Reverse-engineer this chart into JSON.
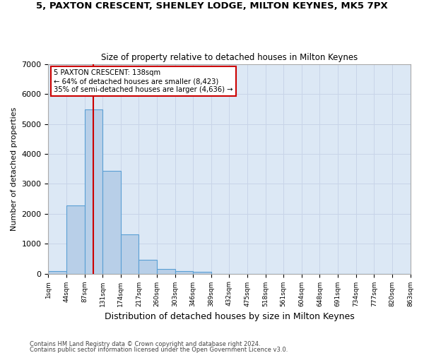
{
  "title1": "5, PAXTON CRESCENT, SHENLEY LODGE, MILTON KEYNES, MK5 7PX",
  "title2": "Size of property relative to detached houses in Milton Keynes",
  "xlabel": "Distribution of detached houses by size in Milton Keynes",
  "ylabel": "Number of detached properties",
  "footnote1": "Contains HM Land Registry data © Crown copyright and database right 2024.",
  "footnote2": "Contains public sector information licensed under the Open Government Licence v3.0.",
  "bar_values": [
    75,
    2280,
    5480,
    3430,
    1310,
    470,
    165,
    90,
    55,
    0,
    0,
    0,
    0,
    0,
    0,
    0,
    0,
    0,
    0,
    0
  ],
  "tick_labels": [
    "1sqm",
    "44sqm",
    "87sqm",
    "131sqm",
    "174sqm",
    "217sqm",
    "260sqm",
    "303sqm",
    "346sqm",
    "389sqm",
    "432sqm",
    "475sqm",
    "518sqm",
    "561sqm",
    "604sqm",
    "648sqm",
    "691sqm",
    "734sqm",
    "777sqm",
    "820sqm",
    "863sqm"
  ],
  "bar_color": "#b8cfe8",
  "bar_edge_color": "#5a9fd4",
  "grid_color": "#c8d4e8",
  "background_color": "#dce8f5",
  "vline_x": 2.5,
  "vline_color": "#cc0000",
  "annotation_text": "5 PAXTON CRESCENT: 138sqm\n← 64% of detached houses are smaller (8,423)\n35% of semi-detached houses are larger (4,636) →",
  "annotation_box_color": "#cc0000",
  "ylim": [
    0,
    7000
  ],
  "yticks": [
    0,
    1000,
    2000,
    3000,
    4000,
    5000,
    6000,
    7000
  ]
}
